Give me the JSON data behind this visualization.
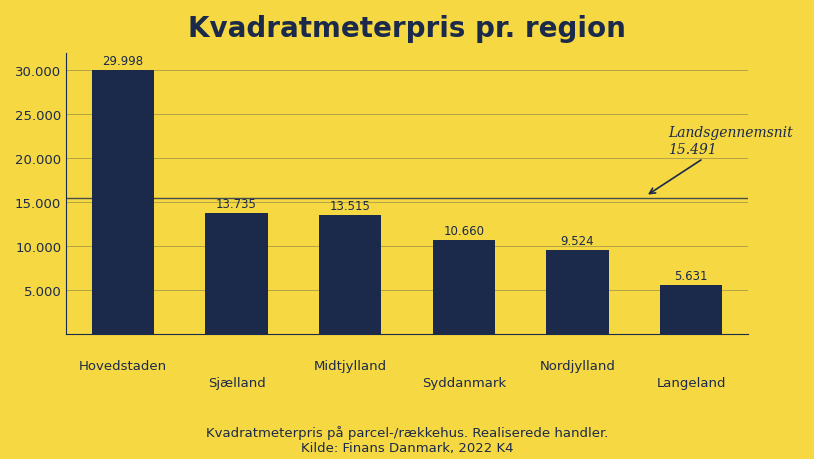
{
  "title": "Kvadratmeterpris pr. region",
  "categories": [
    "Hovedstaden",
    "Sjælland",
    "Midtjylland",
    "Syddanmark",
    "Nordjylland",
    "Langeland"
  ],
  "values": [
    29998,
    13735,
    13515,
    10660,
    9524,
    5631
  ],
  "bar_labels": [
    "29.998",
    "13.735",
    "13.515",
    "10.660",
    "9.524",
    "5.631"
  ],
  "bar_color": "#1b2a4a",
  "background_color": "#f5d842",
  "text_color": "#1b2a4a",
  "ylim": [
    0,
    32000
  ],
  "yticks": [
    5000,
    10000,
    15000,
    20000,
    25000,
    30000
  ],
  "ytick_labels": [
    "5.000",
    "10.000",
    "15.000",
    "20.000",
    "25.000",
    "30.000"
  ],
  "avg_line_value": 15491,
  "avg_label_line1": "Landsgennemsnit",
  "avg_label_line2": "15.491",
  "footnote_line1": "Kvadratmeterpris på parcel-/rækkehus. Realiserede handler.",
  "footnote_line2": "Kilde: Finans Danmark, 2022 K4",
  "title_fontsize": 20,
  "bar_label_fontsize": 8.5,
  "tick_fontsize": 9.5,
  "footnote_fontsize": 9.5,
  "avg_label_fontsize": 10
}
